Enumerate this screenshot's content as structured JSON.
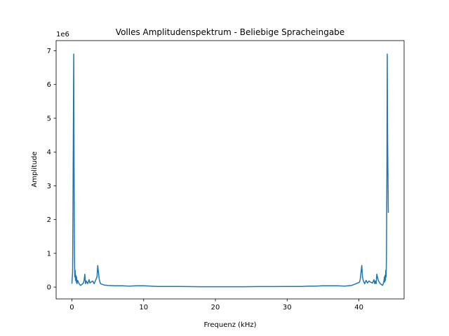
{
  "chart_data": {
    "type": "line",
    "title": "Volles Amplitudenspektrum - Beliebige Spracheingabe",
    "xlabel": "Frequenz (kHz)",
    "ylabel": "Amplitude",
    "y_offset_label": "1e6",
    "xlim": [
      -2.2,
      46.3
    ],
    "ylim": [
      -0.35,
      7.3
    ],
    "x_ticks": [
      0,
      10,
      20,
      30,
      40
    ],
    "x_tick_labels": [
      "0",
      "10",
      "20",
      "30",
      "40"
    ],
    "y_ticks": [
      0,
      1,
      2,
      3,
      4,
      5,
      6,
      7
    ],
    "y_tick_labels": [
      "0",
      "1",
      "2",
      "3",
      "4",
      "5",
      "6",
      "7"
    ],
    "grid": false,
    "legend": "none",
    "series_color": "#1f77b4",
    "series": [
      {
        "x": [
          0.0,
          0.1,
          0.15,
          0.2,
          0.25,
          0.3,
          0.35,
          0.4,
          0.45,
          0.5,
          0.55,
          0.6,
          0.65,
          0.7,
          0.8,
          0.9,
          1.0,
          1.2,
          1.4,
          1.6,
          1.7,
          1.8,
          1.9,
          2.0,
          2.2,
          2.4,
          2.5,
          2.7,
          2.9,
          3.1,
          3.3,
          3.5,
          3.6,
          3.7,
          3.8,
          3.9,
          4.0,
          4.5,
          5.0,
          6.0,
          7.0,
          8.0,
          9.0,
          10.0,
          11.0,
          12.0,
          14.0,
          16.0,
          18.0,
          20.0,
          22.05,
          24.0,
          26.0,
          28.0,
          30.0,
          32.0,
          33.0,
          34.0,
          35.0,
          36.0,
          37.0,
          38.0,
          39.0,
          39.6,
          40.1,
          40.2,
          40.3,
          40.4,
          40.5,
          40.6,
          40.8,
          41.0,
          41.2,
          41.4,
          41.6,
          41.9,
          42.1,
          42.2,
          42.3,
          42.4,
          42.5,
          42.7,
          42.9,
          43.1,
          43.3,
          43.4,
          43.45,
          43.5,
          43.55,
          43.6,
          43.65,
          43.7,
          43.75,
          43.8,
          43.85,
          43.9,
          43.95,
          44.0,
          44.1
        ],
        "y": [
          0.1,
          0.45,
          2.2,
          4.4,
          6.9,
          3.5,
          1.0,
          0.3,
          0.5,
          0.2,
          0.35,
          0.15,
          0.3,
          0.1,
          0.2,
          0.15,
          0.1,
          0.05,
          0.08,
          0.12,
          0.2,
          0.38,
          0.1,
          0.18,
          0.1,
          0.22,
          0.12,
          0.15,
          0.18,
          0.1,
          0.2,
          0.3,
          0.64,
          0.45,
          0.25,
          0.15,
          0.1,
          0.06,
          0.05,
          0.04,
          0.04,
          0.03,
          0.04,
          0.04,
          0.03,
          0.02,
          0.02,
          0.015,
          0.01,
          0.01,
          0.01,
          0.01,
          0.015,
          0.015,
          0.02,
          0.02,
          0.03,
          0.03,
          0.04,
          0.04,
          0.04,
          0.03,
          0.05,
          0.1,
          0.15,
          0.25,
          0.45,
          0.64,
          0.3,
          0.2,
          0.1,
          0.2,
          0.12,
          0.18,
          0.15,
          0.12,
          0.22,
          0.1,
          0.18,
          0.1,
          0.38,
          0.2,
          0.12,
          0.08,
          0.05,
          0.1,
          0.15,
          0.2,
          0.3,
          0.15,
          0.35,
          0.2,
          0.5,
          0.3,
          1.0,
          3.5,
          6.9,
          4.4,
          2.2
        ]
      }
    ]
  }
}
